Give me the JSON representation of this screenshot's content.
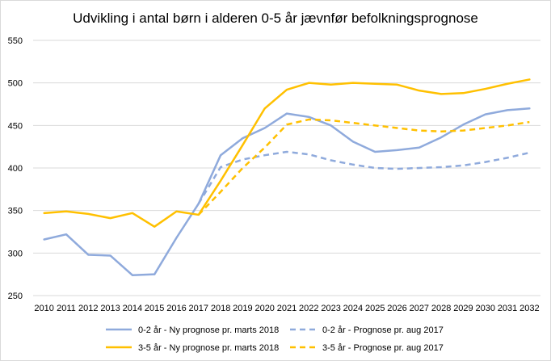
{
  "chart_data": {
    "type": "line",
    "title": "Udvikling i antal børn i alderen 0-5 år jævnfør befolkningsprognose",
    "xlabel": "",
    "ylabel": "",
    "ylim": [
      250,
      550
    ],
    "yticks": [
      250,
      300,
      350,
      400,
      450,
      500,
      550
    ],
    "grid": true,
    "legend_position": "bottom",
    "x": [
      "2010",
      "2011",
      "2012",
      "2013",
      "2014",
      "2015",
      "2016",
      "2017",
      "2018",
      "2019",
      "2020",
      "2021",
      "2022",
      "2023",
      "2024",
      "2025",
      "2026",
      "2027",
      "2028",
      "2029",
      "2030",
      "2031",
      "2032"
    ],
    "series": [
      {
        "name": "0-2 år - Ny prognose pr. marts 2018",
        "color": "#8faadc",
        "dashed": false,
        "values": [
          316,
          322,
          298,
          297,
          274,
          275,
          318,
          358,
          415,
          435,
          447,
          464,
          460,
          450,
          431,
          419,
          421,
          424,
          436,
          451,
          463,
          468,
          470
        ]
      },
      {
        "name": "0-2 år - Prognose pr. aug 2017",
        "color": "#8faadc",
        "dashed": true,
        "values": [
          null,
          null,
          null,
          null,
          null,
          null,
          null,
          358,
          401,
          410,
          415,
          419,
          416,
          409,
          404,
          400,
          399,
          400,
          401,
          403,
          407,
          412,
          418
        ]
      },
      {
        "name": "3-5 år - Ny prognose pr. marts 2018",
        "color": "#ffc000",
        "dashed": false,
        "values": [
          347,
          349,
          346,
          341,
          347,
          331,
          349,
          345,
          385,
          427,
          470,
          492,
          500,
          498,
          500,
          499,
          498,
          491,
          487,
          488,
          493,
          499,
          504
        ]
      },
      {
        "name": "3-5 år - Prognose pr. aug 2017",
        "color": "#ffc000",
        "dashed": true,
        "values": [
          null,
          null,
          null,
          null,
          null,
          null,
          null,
          345,
          372,
          400,
          424,
          451,
          457,
          456,
          453,
          450,
          447,
          444,
          443,
          444,
          447,
          450,
          454
        ]
      }
    ]
  }
}
